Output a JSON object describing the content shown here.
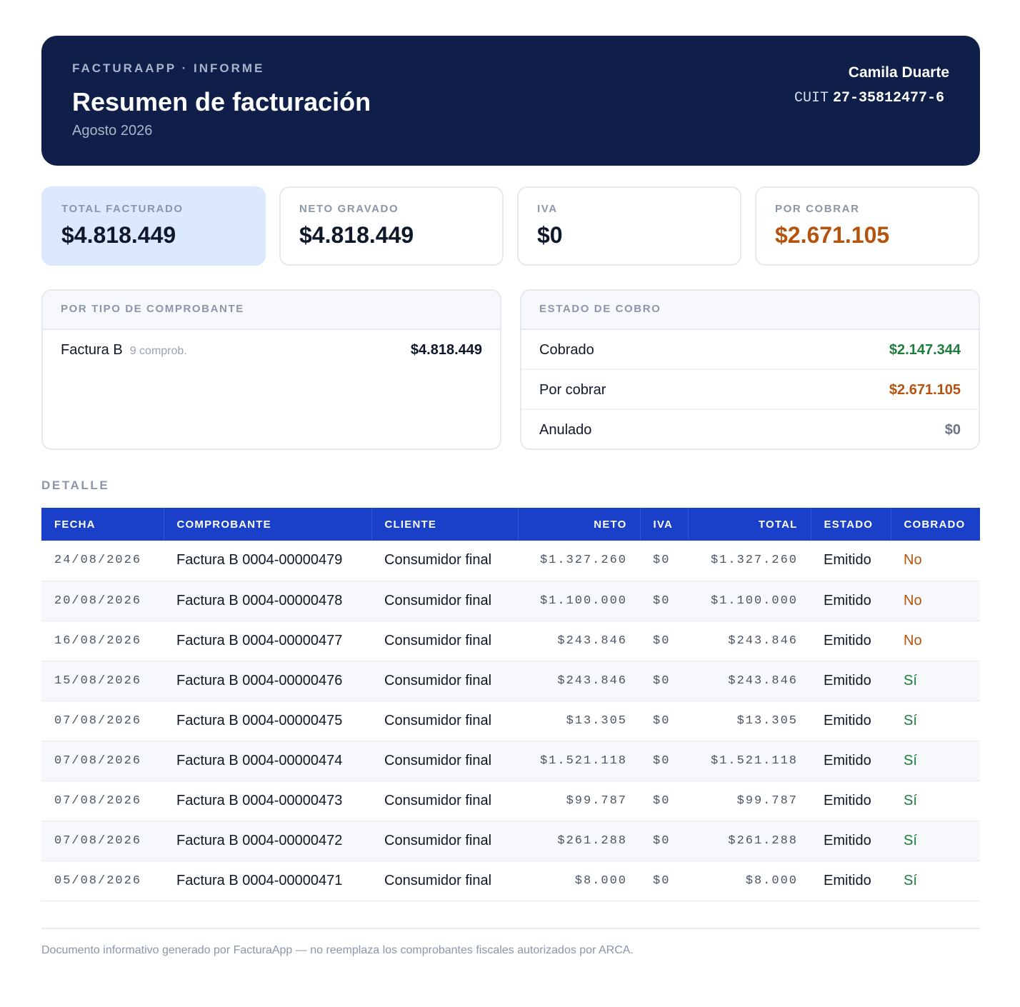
{
  "header": {
    "kicker": "FACTURAAPP · INFORME",
    "title": "Resumen de facturación",
    "period": "Agosto 2026",
    "user": "Camila Duarte",
    "cuit_label": "CUIT",
    "cuit_value": "27-35812477-6"
  },
  "kpis": [
    {
      "label": "TOTAL FACTURADO",
      "value": "$4.818.449"
    },
    {
      "label": "NETO GRAVADO",
      "value": "$4.818.449"
    },
    {
      "label": "IVA",
      "value": "$0"
    },
    {
      "label": "POR COBRAR",
      "value": "$2.671.105"
    }
  ],
  "by_type": {
    "title": "POR TIPO DE COMPROBANTE",
    "rows": [
      {
        "label": "Factura B",
        "sub": "9 comprob.",
        "value": "$4.818.449"
      }
    ]
  },
  "collection": {
    "title": "ESTADO DE COBRO",
    "rows": [
      {
        "label": "Cobrado",
        "value": "$2.147.344"
      },
      {
        "label": "Por cobrar",
        "value": "$2.671.105"
      },
      {
        "label": "Anulado",
        "value": "$0"
      }
    ]
  },
  "detail": {
    "label": "DETALLE",
    "columns": [
      "FECHA",
      "COMPROBANTE",
      "CLIENTE",
      "NETO",
      "IVA",
      "TOTAL",
      "ESTADO",
      "COBRADO"
    ],
    "rows": [
      {
        "fecha": "24/08/2026",
        "comprobante": "Factura B 0004-00000479",
        "cliente": "Consumidor final",
        "neto": "$1.327.260",
        "iva": "$0",
        "total": "$1.327.260",
        "estado": "Emitido",
        "cobrado": "No"
      },
      {
        "fecha": "20/08/2026",
        "comprobante": "Factura B 0004-00000478",
        "cliente": "Consumidor final",
        "neto": "$1.100.000",
        "iva": "$0",
        "total": "$1.100.000",
        "estado": "Emitido",
        "cobrado": "No"
      },
      {
        "fecha": "16/08/2026",
        "comprobante": "Factura B 0004-00000477",
        "cliente": "Consumidor final",
        "neto": "$243.846",
        "iva": "$0",
        "total": "$243.846",
        "estado": "Emitido",
        "cobrado": "No"
      },
      {
        "fecha": "15/08/2026",
        "comprobante": "Factura B 0004-00000476",
        "cliente": "Consumidor final",
        "neto": "$243.846",
        "iva": "$0",
        "total": "$243.846",
        "estado": "Emitido",
        "cobrado": "Sí"
      },
      {
        "fecha": "07/08/2026",
        "comprobante": "Factura B 0004-00000475",
        "cliente": "Consumidor final",
        "neto": "$13.305",
        "iva": "$0",
        "total": "$13.305",
        "estado": "Emitido",
        "cobrado": "Sí"
      },
      {
        "fecha": "07/08/2026",
        "comprobante": "Factura B 0004-00000474",
        "cliente": "Consumidor final",
        "neto": "$1.521.118",
        "iva": "$0",
        "total": "$1.521.118",
        "estado": "Emitido",
        "cobrado": "Sí"
      },
      {
        "fecha": "07/08/2026",
        "comprobante": "Factura B 0004-00000473",
        "cliente": "Consumidor final",
        "neto": "$99.787",
        "iva": "$0",
        "total": "$99.787",
        "estado": "Emitido",
        "cobrado": "Sí"
      },
      {
        "fecha": "07/08/2026",
        "comprobante": "Factura B 0004-00000472",
        "cliente": "Consumidor final",
        "neto": "$261.288",
        "iva": "$0",
        "total": "$261.288",
        "estado": "Emitido",
        "cobrado": "Sí"
      },
      {
        "fecha": "05/08/2026",
        "comprobante": "Factura B 0004-00000471",
        "cliente": "Consumidor final",
        "neto": "$8.000",
        "iva": "$0",
        "total": "$8.000",
        "estado": "Emitido",
        "cobrado": "Sí"
      }
    ]
  },
  "footer": "Documento informativo generado por FacturaApp — no reemplaza los comprobantes fiscales autorizados por ARCA.",
  "colors": {
    "header_bg": "#0f1f4a",
    "table_header_bg": "#1a3fc9",
    "accent_orange": "#b5530e",
    "accent_green": "#1e7d3c",
    "kpi_primary_bg": "#dbe8fd"
  }
}
